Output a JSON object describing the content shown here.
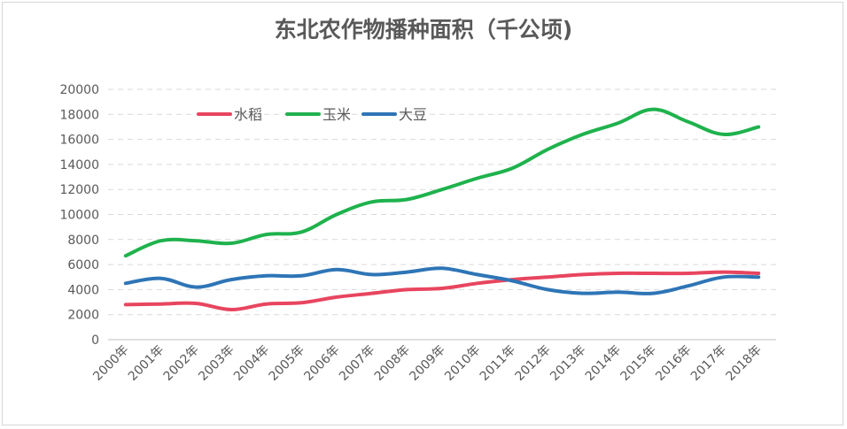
{
  "chart_data": {
    "type": "line",
    "title": "东北农作物播种面积（千公顷)",
    "xlabel": "",
    "ylabel": "",
    "ylim": [
      0,
      20000
    ],
    "yticks": [
      0,
      2000,
      4000,
      6000,
      8000,
      10000,
      12000,
      14000,
      16000,
      18000,
      20000
    ],
    "grid": true,
    "legend_position": "top-left",
    "categories": [
      "2000年",
      "2001年",
      "2002年",
      "2003年",
      "2004年",
      "2005年",
      "2006年",
      "2007年",
      "2008年",
      "2009年",
      "2010年",
      "2011年",
      "2012年",
      "2013年",
      "2014年",
      "2015年",
      "2016年",
      "2017年",
      "2018年"
    ],
    "series": [
      {
        "name": "水稻",
        "color": "#e8455f",
        "values": [
          2800,
          2850,
          2900,
          2400,
          2850,
          2950,
          3400,
          3700,
          4000,
          4100,
          4500,
          4800,
          5000,
          5200,
          5300,
          5300,
          5300,
          5400,
          5300
        ]
      },
      {
        "name": "玉米",
        "color": "#1fb24d",
        "values": [
          6700,
          7900,
          7900,
          7700,
          8400,
          8600,
          10000,
          11000,
          11200,
          12000,
          12900,
          13700,
          15200,
          16400,
          17300,
          18400,
          17400,
          16400,
          17000
        ]
      },
      {
        "name": "大豆",
        "color": "#2e75b6",
        "values": [
          4500,
          4900,
          4200,
          4800,
          5100,
          5100,
          5600,
          5200,
          5400,
          5700,
          5200,
          4700,
          4000,
          3700,
          3800,
          3700,
          4300,
          5000,
          5000
        ]
      }
    ]
  }
}
